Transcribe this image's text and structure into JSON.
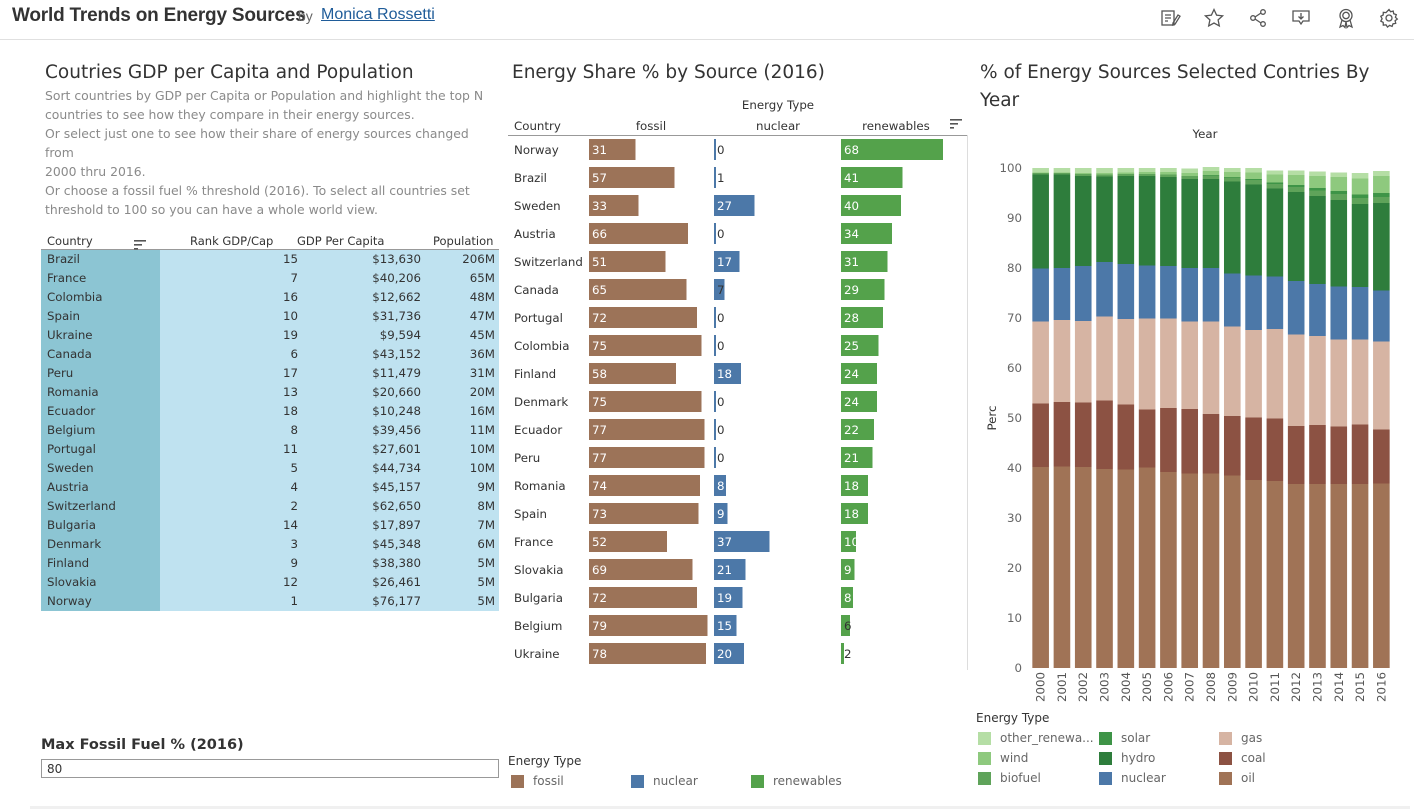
{
  "header": {
    "title": "World Trends on Energy Sources",
    "by": "by",
    "author": "Monica Rossetti",
    "icons": [
      "edit-icon",
      "favorite-star-icon",
      "share-icon",
      "download-icon",
      "badge-icon",
      "settings-gear-icon"
    ]
  },
  "left": {
    "title": "Coutries GDP per Capita and Population",
    "description": "Sort countries by GDP per Capita or Population and highlight the top N\ncountries to see how they compare in their energy sources.\nOr select just one to see how their share of energy sources changed from\n2000 thru 2016.\nOr choose a fossil fuel % threshold (2016). To select all countries set\nthreshold to 100 so you can have a whole world view.",
    "table": {
      "headers": {
        "country": "Country",
        "rank": "Rank GDP/Cap",
        "gdp": "GDP Per Capita",
        "population": "Population"
      },
      "rows": [
        {
          "country": "Brazil",
          "rank": "15",
          "gdp": "$13,630",
          "population": "206M"
        },
        {
          "country": "France",
          "rank": "7",
          "gdp": "$40,206",
          "population": "65M"
        },
        {
          "country": "Colombia",
          "rank": "16",
          "gdp": "$12,662",
          "population": "48M"
        },
        {
          "country": "Spain",
          "rank": "10",
          "gdp": "$31,736",
          "population": "47M"
        },
        {
          "country": "Ukraine",
          "rank": "19",
          "gdp": "$9,594",
          "population": "45M"
        },
        {
          "country": "Canada",
          "rank": "6",
          "gdp": "$43,152",
          "population": "36M"
        },
        {
          "country": "Peru",
          "rank": "17",
          "gdp": "$11,479",
          "population": "31M"
        },
        {
          "country": "Romania",
          "rank": "13",
          "gdp": "$20,660",
          "population": "20M"
        },
        {
          "country": "Ecuador",
          "rank": "18",
          "gdp": "$10,248",
          "population": "16M"
        },
        {
          "country": "Belgium",
          "rank": "8",
          "gdp": "$39,456",
          "population": "11M"
        },
        {
          "country": "Portugal",
          "rank": "11",
          "gdp": "$27,601",
          "population": "10M"
        },
        {
          "country": "Sweden",
          "rank": "5",
          "gdp": "$44,734",
          "population": "10M"
        },
        {
          "country": "Austria",
          "rank": "4",
          "gdp": "$45,157",
          "population": "9M"
        },
        {
          "country": "Switzerland",
          "rank": "2",
          "gdp": "$62,650",
          "population": "8M"
        },
        {
          "country": "Bulgaria",
          "rank": "14",
          "gdp": "$17,897",
          "population": "7M"
        },
        {
          "country": "Denmark",
          "rank": "3",
          "gdp": "$45,348",
          "population": "6M"
        },
        {
          "country": "Finland",
          "rank": "9",
          "gdp": "$38,380",
          "population": "5M"
        },
        {
          "country": "Slovakia",
          "rank": "12",
          "gdp": "$26,461",
          "population": "5M"
        },
        {
          "country": "Norway",
          "rank": "1",
          "gdp": "$76,177",
          "population": "5M"
        }
      ]
    },
    "filter": {
      "label": "Max Fossil Fuel % (2016)",
      "value": "80"
    }
  },
  "colors": {
    "fossil": "#9c7358",
    "nuclear": "#4c78a8",
    "renewables": "#54a24b",
    "table_country_bg": "#8cc5d3",
    "table_bg": "#bfe2f0",
    "oil": "#a07356",
    "coal": "#8c5243",
    "gas": "#d6b4a3",
    "biofuel": "#5fa35a",
    "hydro": "#2e7d3c",
    "solar": "#3e9447",
    "wind": "#8ec97e",
    "other_renewables": "#b5dea5"
  },
  "chart_data": [
    {
      "type": "bar",
      "title": "Energy Share % by Source (2016)",
      "column_group_label": "Energy Type",
      "row_label": "Country",
      "columns": [
        "fossil",
        "nuclear",
        "renewables"
      ],
      "categories": [
        "Norway",
        "Brazil",
        "Sweden",
        "Austria",
        "Switzerland",
        "Canada",
        "Portugal",
        "Colombia",
        "Finland",
        "Denmark",
        "Ecuador",
        "Peru",
        "Romania",
        "Spain",
        "France",
        "Slovakia",
        "Bulgaria",
        "Belgium",
        "Ukraine"
      ],
      "series": [
        {
          "name": "fossil",
          "values": [
            31,
            57,
            33,
            66,
            51,
            65,
            72,
            75,
            58,
            75,
            77,
            77,
            74,
            73,
            52,
            69,
            72,
            79,
            78
          ]
        },
        {
          "name": "nuclear",
          "values": [
            0,
            1,
            27,
            0,
            17,
            7,
            0,
            0,
            18,
            0,
            0,
            0,
            8,
            9,
            37,
            21,
            19,
            15,
            20
          ]
        },
        {
          "name": "renewables",
          "values": [
            68,
            41,
            40,
            34,
            31,
            29,
            28,
            25,
            24,
            24,
            22,
            21,
            18,
            18,
            10,
            9,
            8,
            6,
            2
          ]
        }
      ],
      "legend": {
        "title": "Energy Type",
        "items": [
          "fossil",
          "nuclear",
          "renewables"
        ]
      }
    },
    {
      "type": "bar",
      "stacked": true,
      "title": "% of Energy Sources Selected Contries By Year",
      "xlabel": "Year",
      "ylabel": "Perc",
      "ylim": [
        0,
        100
      ],
      "yticks": [
        0,
        10,
        20,
        30,
        40,
        50,
        60,
        70,
        80,
        90,
        100
      ],
      "categories": [
        "2000",
        "2001",
        "2002",
        "2003",
        "2004",
        "2005",
        "2006",
        "2007",
        "2008",
        "2009",
        "2010",
        "2011",
        "2012",
        "2013",
        "2014",
        "2015",
        "2016"
      ],
      "series": [
        {
          "name": "oil",
          "values": [
            40.2,
            40.3,
            40.2,
            39.8,
            39.7,
            40.1,
            39.2,
            38.9,
            38.9,
            38.5,
            37.6,
            37.4,
            36.8,
            36.8,
            36.8,
            36.8,
            36.9
          ]
        },
        {
          "name": "coal",
          "values": [
            12.7,
            12.9,
            12.9,
            13.7,
            13.0,
            11.6,
            12.8,
            12.9,
            11.9,
            11.9,
            12.5,
            12.5,
            11.6,
            11.8,
            11.5,
            11.9,
            10.8
          ]
        },
        {
          "name": "gas",
          "values": [
            16.4,
            16.4,
            16.3,
            16.8,
            17.1,
            18.2,
            17.9,
            17.5,
            18.5,
            17.9,
            17.5,
            17.9,
            18.3,
            17.8,
            17.4,
            17.0,
            17.6
          ]
        },
        {
          "name": "nuclear",
          "values": [
            10.6,
            10.4,
            11.0,
            10.9,
            11.0,
            10.6,
            10.5,
            10.7,
            10.7,
            10.6,
            10.9,
            10.5,
            10.7,
            10.4,
            10.6,
            10.5,
            10.2
          ]
        },
        {
          "name": "hydro",
          "values": [
            18.8,
            18.7,
            18.0,
            17.1,
            17.6,
            17.9,
            17.8,
            17.8,
            17.8,
            18.4,
            18.2,
            17.6,
            17.8,
            17.6,
            17.3,
            16.6,
            17.5
          ]
        },
        {
          "name": "biofuel",
          "values": [
            0.3,
            0.3,
            0.4,
            0.4,
            0.4,
            0.4,
            0.5,
            0.6,
            0.7,
            0.8,
            0.9,
            0.9,
            1.0,
            1.1,
            1.2,
            1.2,
            1.2
          ]
        },
        {
          "name": "solar",
          "values": [
            0.0,
            0.0,
            0.0,
            0.0,
            0.0,
            0.0,
            0.0,
            0.0,
            0.1,
            0.1,
            0.2,
            0.3,
            0.4,
            0.5,
            0.6,
            0.7,
            0.8
          ]
        },
        {
          "name": "wind",
          "values": [
            0.1,
            0.1,
            0.2,
            0.3,
            0.3,
            0.4,
            0.5,
            0.6,
            0.8,
            1.0,
            1.3,
            1.6,
            2.0,
            2.4,
            2.8,
            3.2,
            3.4
          ]
        },
        {
          "name": "other_renewables",
          "values": [
            0.9,
            0.9,
            1.0,
            1.0,
            0.9,
            0.8,
            0.8,
            0.9,
            0.8,
            0.8,
            0.9,
            0.8,
            0.9,
            0.9,
            0.9,
            1.1,
            1.0
          ]
        }
      ],
      "legend": {
        "title": "Energy Type",
        "items": [
          {
            "name": "other_renewa...",
            "color_key": "other_renewables"
          },
          {
            "name": "solar",
            "color_key": "solar"
          },
          {
            "name": "gas",
            "color_key": "gas"
          },
          {
            "name": "wind",
            "color_key": "wind"
          },
          {
            "name": "hydro",
            "color_key": "hydro"
          },
          {
            "name": "coal",
            "color_key": "coal"
          },
          {
            "name": "biofuel",
            "color_key": "biofuel"
          },
          {
            "name": "nuclear",
            "color_key": "nuclear"
          },
          {
            "name": "oil",
            "color_key": "oil"
          }
        ]
      }
    }
  ]
}
